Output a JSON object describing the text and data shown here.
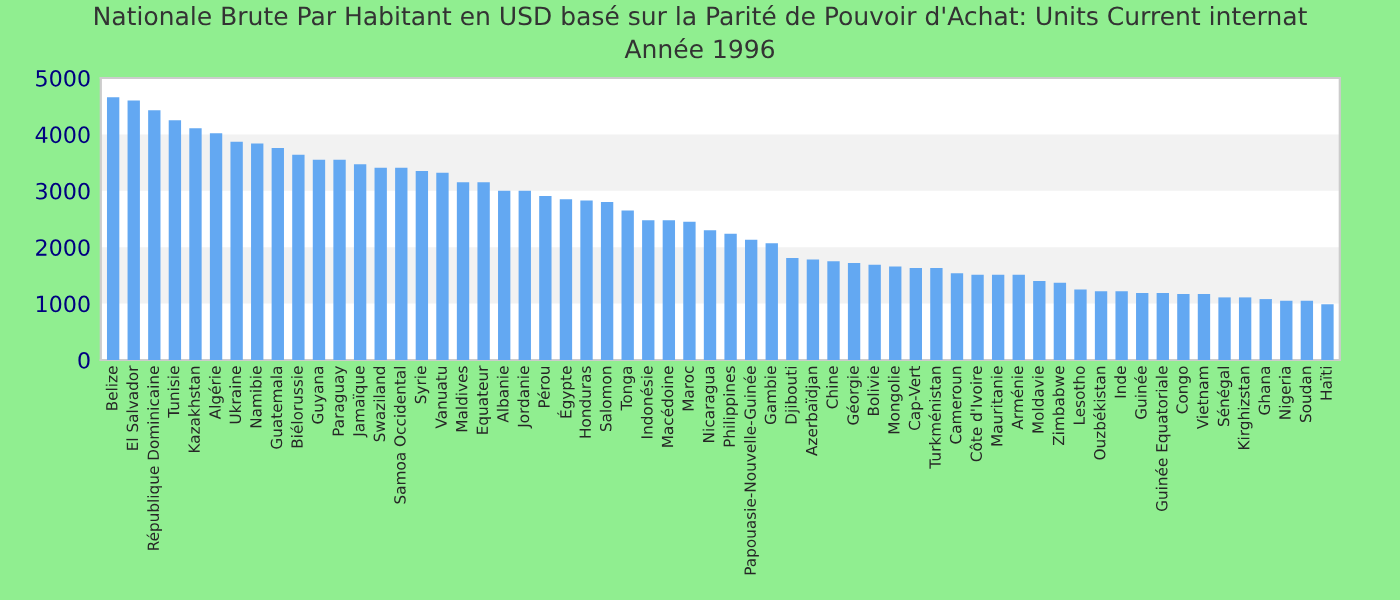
{
  "chart_data": {
    "type": "bar",
    "title": "Nationale Brute Par Habitant en USD basé sur la Parité de Pouvoir d'Achat: Units Current internat",
    "subtitle": "Année 1996",
    "categories": [
      "Belize",
      "El Salvador",
      "République Dominicaine",
      "Tunisie",
      "Kazakhstan",
      "Algérie",
      "Ukraine",
      "Namibie",
      "Guatemala",
      "Biélorussie",
      "Guyana",
      "Paraguay",
      "Jamaïque",
      "Swaziland",
      "Samoa Occidental",
      "Syrie",
      "Vanuatu",
      "Maldives",
      "Equateur",
      "Albanie",
      "Jordanie",
      "Pérou",
      "Égypte",
      "Honduras",
      "Salomon",
      "Tonga",
      "Indonésie",
      "Macédoine",
      "Maroc",
      "Nicaragua",
      "Philippines",
      "Papouasie-Nouvelle-Guinée",
      "Gambie",
      "Djibouti",
      "Azerbaïdjan",
      "Chine",
      "Géorgie",
      "Bolivie",
      "Mongolie",
      "Cap-Vert",
      "Turkménistan",
      "Cameroun",
      "Côte d'Ivoire",
      "Mauritanie",
      "Arménie",
      "Moldavie",
      "Zimbabwe",
      "Lesotho",
      "Ouzbékistan",
      "Inde",
      "Guinée",
      "Guinée Equatoriale",
      "Congo",
      "Vietnam",
      "Sénégal",
      "Kirghizstan",
      "Ghana",
      "Nigeria",
      "Soudan",
      "Haïti"
    ],
    "values": [
      4660,
      4600,
      4430,
      4250,
      4110,
      4020,
      3870,
      3840,
      3760,
      3640,
      3550,
      3550,
      3470,
      3410,
      3410,
      3350,
      3320,
      3150,
      3150,
      3000,
      3000,
      2910,
      2850,
      2830,
      2800,
      2650,
      2480,
      2480,
      2450,
      2300,
      2240,
      2130,
      2070,
      1810,
      1780,
      1750,
      1720,
      1690,
      1660,
      1630,
      1630,
      1540,
      1510,
      1510,
      1510,
      1400,
      1370,
      1250,
      1220,
      1220,
      1190,
      1190,
      1170,
      1170,
      1110,
      1110,
      1080,
      1050,
      1050,
      990
    ],
    "color": "#63a8f2",
    "ylim": [
      0,
      5000
    ],
    "yticks": [
      0,
      1000,
      2000,
      3000,
      4000,
      5000
    ],
    "bands": [
      {
        "axis": "y",
        "from": 1000,
        "to": 2000,
        "color": "#f2f2f2"
      },
      {
        "axis": "y",
        "from": 3000,
        "to": 4000,
        "color": "#f2f2f2"
      }
    ],
    "grid": false
  }
}
